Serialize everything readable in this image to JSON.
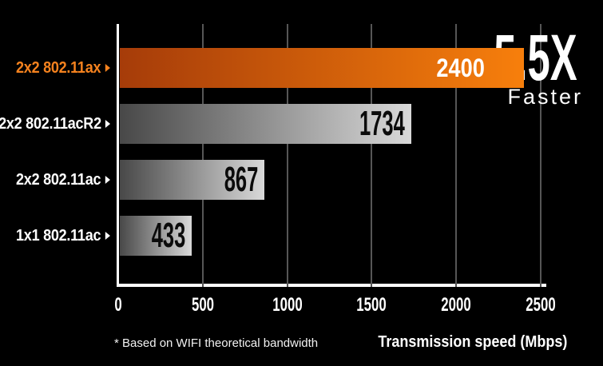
{
  "chart_data": {
    "type": "bar",
    "orientation": "horizontal",
    "categories": [
      "2x2 802.11ax",
      "2x2 802.11acR2",
      "2x2 802.11ac",
      "1x1 802.11ac"
    ],
    "values": [
      2400,
      1734,
      867,
      433
    ],
    "value_labels": [
      "2400",
      "1734",
      "867",
      "433"
    ],
    "highlight_index": 0,
    "xlabel": "Transmission speed (Mbps)",
    "xlim": [
      0,
      2500
    ],
    "x_ticks": [
      0,
      500,
      1000,
      1500,
      2000,
      2500
    ],
    "grid": "vertical gridlines",
    "legend": "none"
  },
  "annotation": {
    "multiplier": "5.5X",
    "caption": "Faster"
  },
  "footnote": "* Based on WIFI theoretical bandwidth",
  "colors": {
    "background": "#000000",
    "axis": "#ffffff",
    "gridline": "#565656",
    "highlight_bar_gradient_start": "#a63c09",
    "highlight_bar_gradient_end": "#f77f0c",
    "highlight_label": "#f5821e",
    "bar_gradient_start": "#484848",
    "bar_gradient_end": "#d9d9d9",
    "category_label": "#ffffff",
    "value_on_highlight": "#ffffff",
    "value_on_bar": "#0b0b0b",
    "tick_label": "#ffffff",
    "annotation_text": "#ffffff"
  }
}
